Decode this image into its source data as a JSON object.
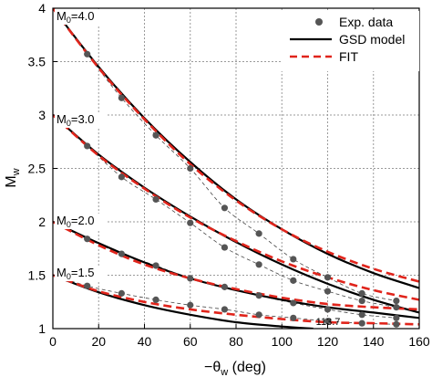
{
  "chart_data": {
    "type": "line",
    "xlabel_main": "−θ",
    "xlabel_sub": "w",
    "xlabel_unit": " (deg)",
    "ylabel_main": "M",
    "ylabel_sub": "w",
    "xlim": [
      0,
      160
    ],
    "ylim": [
      1,
      4
    ],
    "xticks": [
      0,
      20,
      40,
      60,
      80,
      100,
      120,
      140,
      160
    ],
    "yticks": [
      1,
      1.5,
      2,
      2.5,
      3,
      3.5,
      4
    ],
    "xtick_labels": [
      "0",
      "20",
      "40",
      "60",
      "80",
      "100",
      "120",
      "140",
      "160"
    ],
    "ytick_labels": [
      "1",
      "1.5",
      "2",
      "2.5",
      "3",
      "3.5",
      "4"
    ],
    "grid": true,
    "legend_position": "top-right",
    "legend": [
      {
        "label": "Exp. data",
        "style": "marker"
      },
      {
        "label": "GSD model",
        "style": "solid"
      },
      {
        "label": "FIT",
        "style": "dashed"
      }
    ],
    "annotation": {
      "text": "113.7",
      "x": 113.7,
      "y": 1
    },
    "cases": [
      {
        "label_main": "M",
        "label_sub": "0",
        "label_eq": "=4.0",
        "exp": {
          "x": [
            15,
            30,
            45,
            60,
            75,
            90,
            105,
            120,
            135,
            150
          ],
          "y": [
            3.57,
            3.16,
            2.81,
            2.5,
            2.13,
            1.89,
            1.65,
            1.48,
            1.33,
            1.26
          ]
        },
        "gsd": {
          "x": [
            0,
            20,
            40,
            60,
            80,
            100,
            120,
            140,
            160
          ],
          "y": [
            4.0,
            3.45,
            2.97,
            2.56,
            2.21,
            1.93,
            1.7,
            1.52,
            1.38
          ]
        },
        "fit": {
          "x": [
            0,
            20,
            40,
            60,
            80,
            100,
            120,
            140,
            160
          ],
          "y": [
            4.0,
            3.44,
            2.96,
            2.54,
            2.2,
            1.93,
            1.72,
            1.56,
            1.44
          ]
        }
      },
      {
        "label_main": "M",
        "label_sub": "0",
        "label_eq": "=3.0",
        "exp": {
          "x": [
            15,
            30,
            45,
            60,
            75,
            90,
            105,
            120,
            135,
            150
          ],
          "y": [
            2.71,
            2.42,
            2.21,
            1.99,
            1.76,
            1.6,
            1.45,
            1.35,
            1.26,
            1.2
          ]
        },
        "gsd": {
          "x": [
            0,
            20,
            40,
            60,
            80,
            100,
            120,
            140,
            160
          ],
          "y": [
            3.0,
            2.63,
            2.32,
            2.05,
            1.81,
            1.6,
            1.42,
            1.27,
            1.15
          ]
        },
        "fit": {
          "x": [
            0,
            20,
            40,
            60,
            80,
            100,
            120,
            140,
            160
          ],
          "y": [
            3.0,
            2.62,
            2.31,
            2.04,
            1.82,
            1.63,
            1.48,
            1.36,
            1.27
          ]
        }
      },
      {
        "label_main": "M",
        "label_sub": "0",
        "label_eq": "=2.0",
        "exp": {
          "x": [
            15,
            30,
            45,
            60,
            75,
            90,
            105,
            120,
            135,
            150
          ],
          "y": [
            1.84,
            1.7,
            1.59,
            1.47,
            1.39,
            1.31,
            1.24,
            1.18,
            1.13,
            1.1
          ]
        },
        "gsd": {
          "x": [
            0,
            20,
            40,
            60,
            80,
            100,
            120,
            140,
            160
          ],
          "y": [
            2.0,
            1.8,
            1.62,
            1.47,
            1.36,
            1.27,
            1.2,
            1.15,
            1.1
          ]
        },
        "fit": {
          "x": [
            0,
            20,
            40,
            60,
            80,
            100,
            120,
            140,
            160
          ],
          "y": [
            2.0,
            1.78,
            1.6,
            1.47,
            1.37,
            1.29,
            1.23,
            1.2,
            1.18
          ]
        }
      },
      {
        "label_main": "M",
        "label_sub": "0",
        "label_eq": "=1.5",
        "exp": {
          "x": [
            15,
            30,
            45,
            60,
            75,
            90,
            105,
            120,
            135,
            150
          ],
          "y": [
            1.4,
            1.33,
            1.27,
            1.22,
            1.18,
            1.13,
            1.1,
            1.07,
            1.05,
            1.04
          ]
        },
        "gsd": {
          "x": [
            0,
            20,
            40,
            60,
            80,
            100,
            113.7
          ],
          "y": [
            1.5,
            1.34,
            1.22,
            1.13,
            1.06,
            1.02,
            1.0
          ]
        },
        "fit": {
          "x": [
            0,
            20,
            40,
            60,
            80,
            100,
            120,
            140,
            160
          ],
          "y": [
            1.5,
            1.35,
            1.25,
            1.18,
            1.13,
            1.09,
            1.06,
            1.05,
            1.04
          ]
        }
      }
    ]
  }
}
